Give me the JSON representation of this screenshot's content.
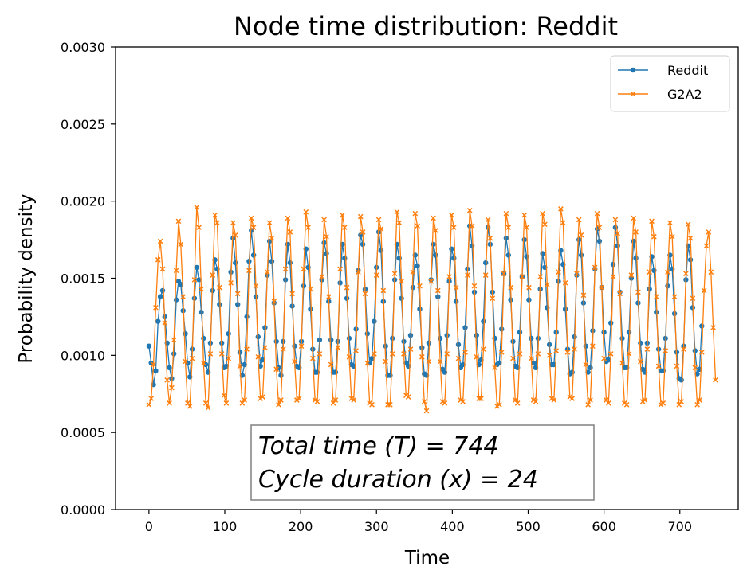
{
  "chart_data": {
    "type": "line",
    "title": "Node time distribution: Reddit",
    "xlabel": "Time",
    "ylabel": "Probability density",
    "xlim": [
      -44,
      777
    ],
    "ylim": [
      0,
      0.003
    ],
    "xticks": [
      0,
      100,
      200,
      300,
      400,
      500,
      600,
      700
    ],
    "xtick_labels": [
      "0",
      "100",
      "200",
      "300",
      "400",
      "500",
      "600",
      "700"
    ],
    "yticks": [
      0,
      0.0005,
      0.001,
      0.0015,
      0.002,
      0.0025,
      0.003
    ],
    "ytick_labels": [
      "0.0000",
      "0.0005",
      "0.0010",
      "0.0015",
      "0.0020",
      "0.0025",
      "0.0030"
    ],
    "grid": false,
    "legend_position": "top-right",
    "annotation_lines": [
      "Total time (T) = 744",
      "Cycle duration (x) = 24"
    ],
    "total_time": 744,
    "cycle_duration": 24,
    "series": [
      {
        "name": "Reddit",
        "color": "#1f77b4",
        "marker": "circle",
        "x_start": 0,
        "x_step": 3,
        "values": [
          0.00106,
          0.00095,
          0.00081,
          0.0009,
          0.00122,
          0.00138,
          0.00142,
          0.00125,
          0.00108,
          0.00092,
          0.00085,
          0.00101,
          0.00136,
          0.00148,
          0.00146,
          0.00129,
          0.00114,
          0.00095,
          0.00086,
          0.00104,
          0.00137,
          0.00157,
          0.00149,
          0.00128,
          0.00111,
          0.00094,
          0.00089,
          0.00108,
          0.00142,
          0.00162,
          0.00156,
          0.00133,
          0.00108,
          0.00092,
          0.00093,
          0.00114,
          0.00154,
          0.00176,
          0.0016,
          0.00133,
          0.00102,
          0.00087,
          0.00094,
          0.00125,
          0.00161,
          0.00181,
          0.00165,
          0.00138,
          0.00112,
          0.00093,
          0.00097,
          0.00118,
          0.00152,
          0.00174,
          0.00161,
          0.00134,
          0.00109,
          0.00092,
          0.00087,
          0.00109,
          0.00149,
          0.00172,
          0.0016,
          0.00132,
          0.00106,
          0.00093,
          0.00092,
          0.00109,
          0.00145,
          0.00169,
          0.00157,
          0.0013,
          0.00104,
          0.00089,
          0.00089,
          0.0011,
          0.00149,
          0.00173,
          0.00166,
          0.00135,
          0.0011,
          0.00089,
          0.00089,
          0.00109,
          0.00147,
          0.00172,
          0.00163,
          0.00137,
          0.00111,
          0.00094,
          0.00093,
          0.00117,
          0.00155,
          0.00178,
          0.00172,
          0.00143,
          0.00114,
          0.00095,
          0.00098,
          0.00122,
          0.00157,
          0.0018,
          0.00168,
          0.00135,
          0.00106,
          0.00087,
          0.00087,
          0.00111,
          0.00149,
          0.00172,
          0.00163,
          0.00137,
          0.00109,
          0.00095,
          0.00093,
          0.00113,
          0.00144,
          0.00165,
          0.00158,
          0.0013,
          0.00105,
          0.00088,
          0.00087,
          0.00108,
          0.00149,
          0.00172,
          0.00165,
          0.00138,
          0.00111,
          0.00091,
          0.00089,
          0.00113,
          0.00148,
          0.00169,
          0.00163,
          0.00135,
          0.00107,
          0.00092,
          0.00094,
          0.00118,
          0.00156,
          0.00184,
          0.00171,
          0.00141,
          0.00113,
          0.00094,
          0.00097,
          0.00122,
          0.0016,
          0.00183,
          0.00172,
          0.00141,
          0.00111,
          0.00094,
          0.00095,
          0.00117,
          0.00153,
          0.00176,
          0.00165,
          0.00136,
          0.00109,
          0.00093,
          0.00092,
          0.00115,
          0.00151,
          0.00175,
          0.00164,
          0.00136,
          0.00111,
          0.00095,
          0.00092,
          0.00111,
          0.00143,
          0.00166,
          0.00157,
          0.00131,
          0.00107,
          0.00094,
          0.00094,
          0.00115,
          0.00148,
          0.00168,
          0.00159,
          0.0013,
          0.00104,
          0.00088,
          0.00089,
          0.00112,
          0.00152,
          0.00175,
          0.00165,
          0.00134,
          0.00106,
          0.00089,
          0.00092,
          0.00116,
          0.00156,
          0.00182,
          0.00174,
          0.00144,
          0.00115,
          0.00096,
          0.00097,
          0.00121,
          0.00159,
          0.00183,
          0.00171,
          0.00141,
          0.00111,
          0.00092,
          0.00092,
          0.00115,
          0.0015,
          0.00174,
          0.00163,
          0.00134,
          0.00108,
          0.00091,
          0.00089,
          0.00108,
          0.00143,
          0.00164,
          0.00155,
          0.00128,
          0.00104,
          0.0009,
          0.0009,
          0.00111,
          0.00145,
          0.00165,
          0.00156,
          0.00127,
          0.00102,
          0.00085,
          0.00084,
          0.00106,
          0.00149,
          0.00171,
          0.00162,
          0.00131,
          0.00103,
          0.00088,
          0.00091,
          0.00119
        ]
      },
      {
        "name": "G2A2",
        "color": "#ff7f0e",
        "marker": "x",
        "x_start": 0,
        "x_step": 3,
        "values": [
          0.00068,
          0.00072,
          0.00094,
          0.00131,
          0.00162,
          0.00174,
          0.00156,
          0.00121,
          0.00084,
          0.00069,
          0.00079,
          0.0011,
          0.00155,
          0.00187,
          0.00172,
          0.00138,
          0.00096,
          0.00069,
          0.00067,
          0.00098,
          0.00149,
          0.00196,
          0.00183,
          0.00143,
          0.00095,
          0.00069,
          0.00066,
          0.00101,
          0.00152,
          0.00191,
          0.00186,
          0.00144,
          0.00101,
          0.00074,
          0.00069,
          0.00098,
          0.00147,
          0.00186,
          0.00178,
          0.0014,
          0.00093,
          0.00069,
          0.00071,
          0.00104,
          0.00155,
          0.00189,
          0.00183,
          0.00145,
          0.00099,
          0.00072,
          0.00073,
          0.00105,
          0.00154,
          0.00186,
          0.00176,
          0.00135,
          0.00091,
          0.00068,
          0.00071,
          0.00104,
          0.00156,
          0.00189,
          0.0018,
          0.0014,
          0.00096,
          0.00071,
          0.00072,
          0.00106,
          0.00156,
          0.00193,
          0.00183,
          0.00143,
          0.00098,
          0.00071,
          0.0007,
          0.00101,
          0.00151,
          0.00188,
          0.00177,
          0.00138,
          0.00094,
          0.00069,
          0.00071,
          0.00105,
          0.00156,
          0.00191,
          0.00183,
          0.00144,
          0.00099,
          0.00072,
          0.00071,
          0.00103,
          0.00154,
          0.0019,
          0.0018,
          0.0014,
          0.00095,
          0.00069,
          0.00068,
          0.00101,
          0.00152,
          0.00188,
          0.00182,
          0.00142,
          0.00096,
          0.00068,
          0.00068,
          0.00101,
          0.00153,
          0.00193,
          0.00186,
          0.00148,
          0.00101,
          0.00074,
          0.00073,
          0.00104,
          0.00154,
          0.00192,
          0.00184,
          0.00145,
          0.00099,
          0.0007,
          0.00064,
          0.00096,
          0.00148,
          0.00189,
          0.00181,
          0.00142,
          0.00096,
          0.0007,
          0.00069,
          0.00101,
          0.00151,
          0.00191,
          0.00183,
          0.00144,
          0.00098,
          0.00071,
          0.0007,
          0.00102,
          0.00152,
          0.00194,
          0.00184,
          0.00145,
          0.00099,
          0.00072,
          0.00072,
          0.00104,
          0.00152,
          0.00188,
          0.00176,
          0.00137,
          0.00092,
          0.00067,
          0.00068,
          0.00102,
          0.00153,
          0.00192,
          0.00183,
          0.00144,
          0.00098,
          0.00071,
          0.00069,
          0.00101,
          0.00151,
          0.00191,
          0.00183,
          0.00144,
          0.00098,
          0.00071,
          0.0007,
          0.00101,
          0.00151,
          0.00192,
          0.00185,
          0.00146,
          0.001,
          0.00072,
          0.00071,
          0.00103,
          0.00154,
          0.00195,
          0.00186,
          0.00147,
          0.00102,
          0.00073,
          0.00072,
          0.00104,
          0.00153,
          0.00188,
          0.00178,
          0.00139,
          0.00094,
          0.00068,
          0.00071,
          0.00106,
          0.00157,
          0.00192,
          0.00183,
          0.00144,
          0.00098,
          0.00071,
          0.00069,
          0.00101,
          0.00151,
          0.00188,
          0.00179,
          0.0014,
          0.00095,
          0.00069,
          0.00068,
          0.00101,
          0.00152,
          0.00189,
          0.0018,
          0.00141,
          0.00096,
          0.0007,
          0.00071,
          0.00104,
          0.00154,
          0.00187,
          0.00177,
          0.00138,
          0.00093,
          0.00068,
          0.00069,
          0.00103,
          0.00154,
          0.00186,
          0.00177,
          0.00138,
          0.00093,
          0.00068,
          0.0007,
          0.00104,
          0.00153,
          0.00185,
          0.00176,
          0.00137,
          0.00092,
          0.00068,
          0.00071,
          0.00102,
          0.00142,
          0.00171,
          0.0018,
          0.00154,
          0.00118,
          0.00084
        ]
      }
    ]
  }
}
